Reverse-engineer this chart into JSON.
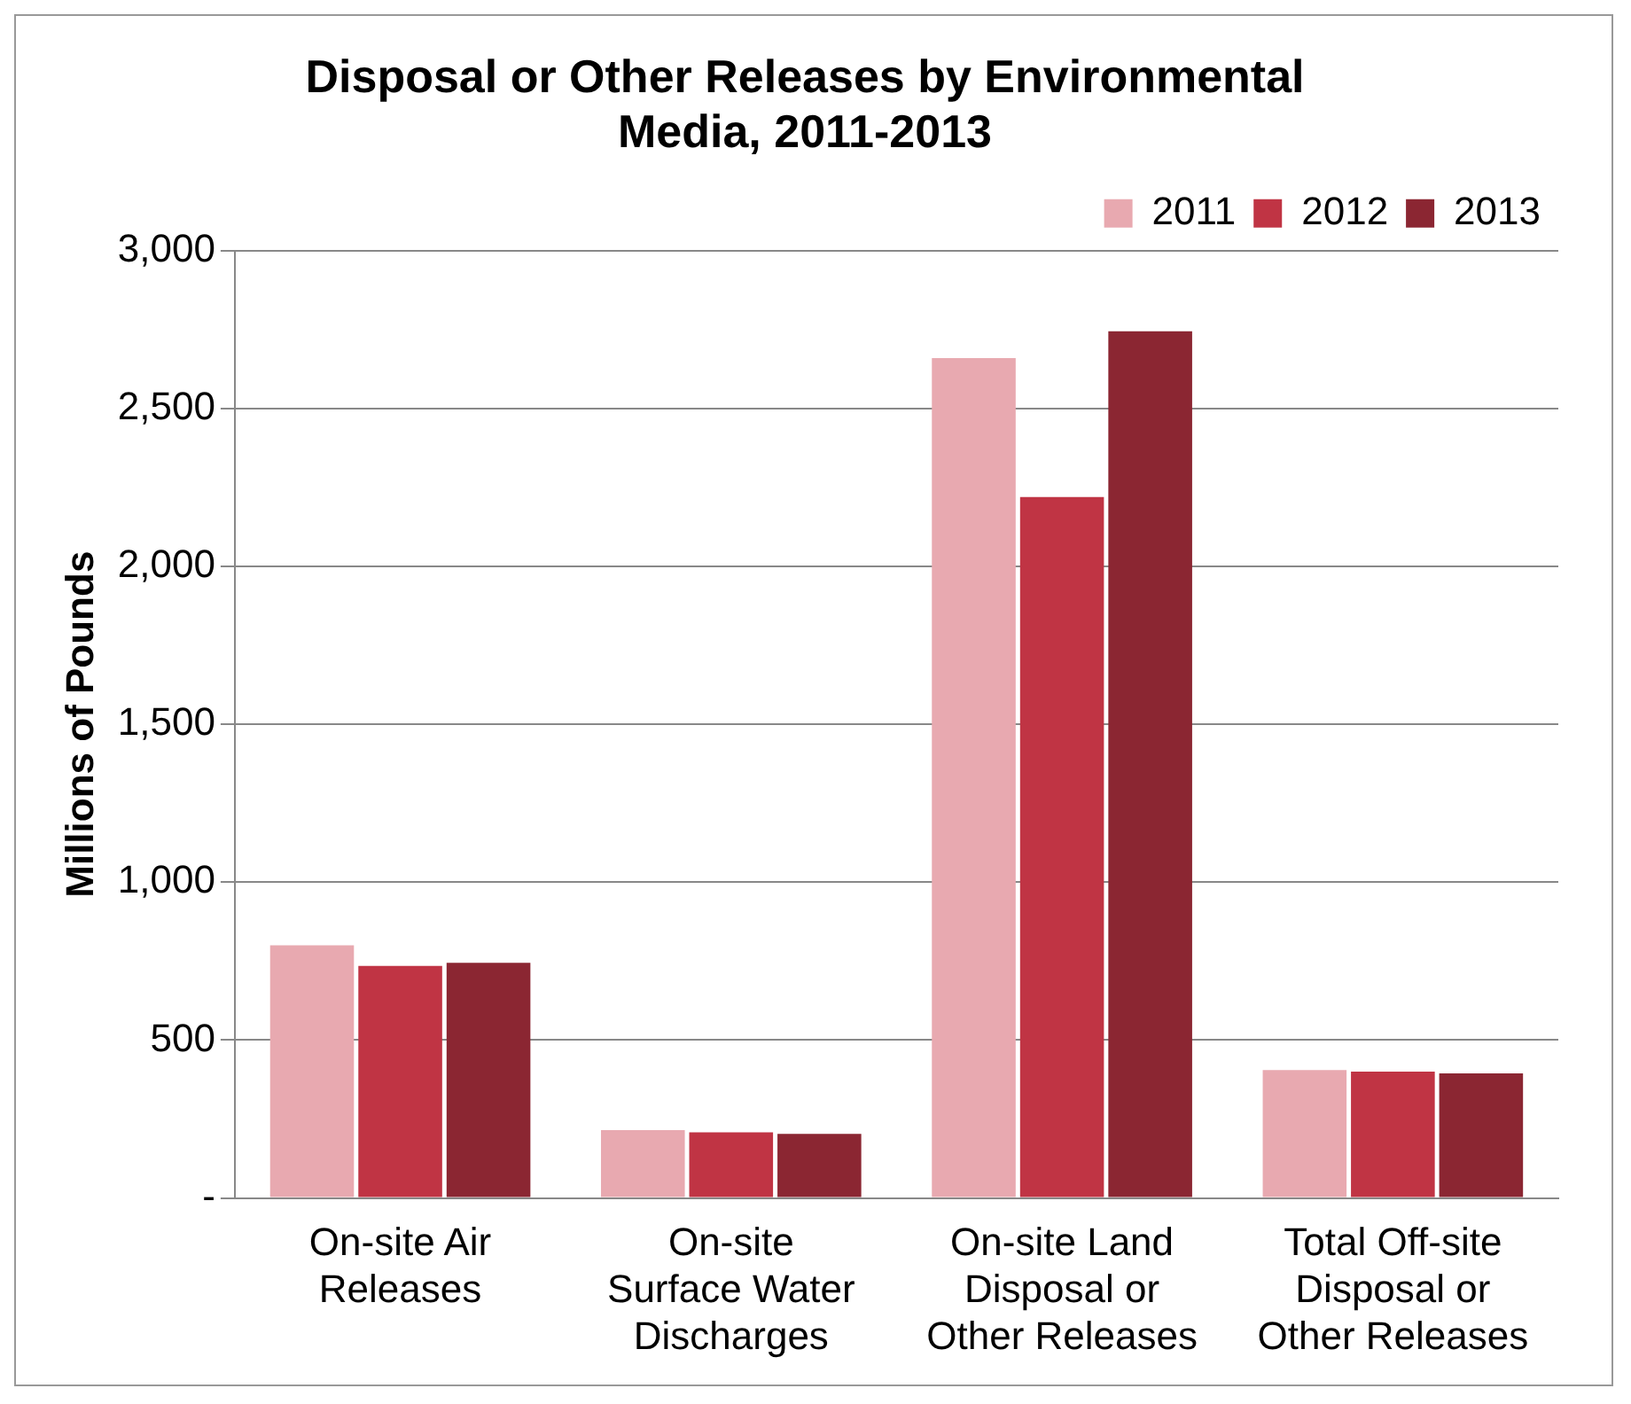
{
  "chart_data": {
    "type": "bar",
    "title": "Disposal or Other Releases by Environmental Media, 2011-2013",
    "ylabel": "Millions of Pounds",
    "categories": [
      "On-site Air Releases",
      "On-site Surface Water Discharges",
      "On-site Land Disposal or Other Releases",
      "Total Off-site Disposal or Other Releases"
    ],
    "series": [
      {
        "name": "2011",
        "color": "#e8a9b0",
        "values": [
          800,
          215,
          2660,
          405
        ]
      },
      {
        "name": "2012",
        "color": "#c03444",
        "values": [
          735,
          208,
          2220,
          400
        ]
      },
      {
        "name": "2013",
        "color": "#8b2632",
        "values": [
          745,
          203,
          2745,
          395
        ]
      }
    ],
    "ylim": [
      0,
      3000
    ],
    "yticks": [
      {
        "value": 0,
        "label": "-"
      },
      {
        "value": 500,
        "label": "500"
      },
      {
        "value": 1000,
        "label": "1,000"
      },
      {
        "value": 1500,
        "label": "1,500"
      },
      {
        "value": 2000,
        "label": "2,000"
      },
      {
        "value": 2500,
        "label": "2,500"
      },
      {
        "value": 3000,
        "label": "3,000"
      }
    ],
    "grid": "y",
    "legend": "top right"
  }
}
